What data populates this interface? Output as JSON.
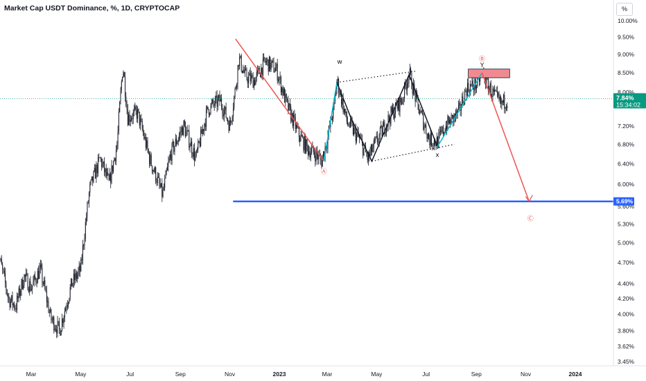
{
  "chart_title": "Market Cap USDT Dominance, %, 1D, CRYPTOCAP",
  "scale_unit": "%",
  "chart_data": {
    "type": "candlestick",
    "scale": "log",
    "title": "Market Cap USDT Dominance, %, 1D, CRYPTOCAP",
    "y_range": [
      3.4,
      10.4
    ],
    "y_ticks": [
      "10.00%",
      "9.50%",
      "9.00%",
      "8.50%",
      "8.00%",
      "7.20%",
      "6.80%",
      "6.40%",
      "6.00%",
      "5.60%",
      "5.30%",
      "5.00%",
      "4.70%",
      "4.40%",
      "4.20%",
      "4.00%",
      "3.80%",
      "3.62%",
      "3.45%"
    ],
    "y_tick_values": [
      10.0,
      9.5,
      9.0,
      8.5,
      8.0,
      7.2,
      6.8,
      6.4,
      6.0,
      5.6,
      5.3,
      5.0,
      4.7,
      4.4,
      4.2,
      4.0,
      3.8,
      3.62,
      3.45
    ],
    "x_ticks": [
      {
        "label": "Mar",
        "date": "2022-03-01",
        "bold": false
      },
      {
        "label": "May",
        "date": "2022-05-01",
        "bold": false
      },
      {
        "label": "Jul",
        "date": "2022-07-01",
        "bold": false
      },
      {
        "label": "Sep",
        "date": "2022-09-01",
        "bold": false
      },
      {
        "label": "Nov",
        "date": "2022-11-01",
        "bold": false
      },
      {
        "label": "2023",
        "date": "2023-01-01",
        "bold": true
      },
      {
        "label": "Mar",
        "date": "2023-03-01",
        "bold": false
      },
      {
        "label": "May",
        "date": "2023-05-01",
        "bold": false
      },
      {
        "label": "Jul",
        "date": "2023-07-01",
        "bold": false
      },
      {
        "label": "Sep",
        "date": "2023-09-01",
        "bold": false
      },
      {
        "label": "Nov",
        "date": "2023-11-01",
        "bold": false
      },
      {
        "label": "2024",
        "date": "2024-01-01",
        "bold": true
      }
    ],
    "price_path": [
      [
        "2022-01-18",
        4.9
      ],
      [
        "2022-02-01",
        4.2
      ],
      [
        "2022-02-10",
        4.1
      ],
      [
        "2022-02-20",
        4.5
      ],
      [
        "2022-03-01",
        4.35
      ],
      [
        "2022-03-12",
        4.6
      ],
      [
        "2022-03-25",
        3.95
      ],
      [
        "2022-04-05",
        3.8
      ],
      [
        "2022-04-20",
        4.4
      ],
      [
        "2022-05-01",
        4.6
      ],
      [
        "2022-05-12",
        5.9
      ],
      [
        "2022-05-25",
        6.5
      ],
      [
        "2022-06-05",
        6.0
      ],
      [
        "2022-06-15",
        6.8
      ],
      [
        "2022-06-22",
        8.7
      ],
      [
        "2022-06-28",
        7.4
      ],
      [
        "2022-07-10",
        7.5
      ],
      [
        "2022-07-25",
        6.5
      ],
      [
        "2022-08-10",
        5.8
      ],
      [
        "2022-08-20",
        6.6
      ],
      [
        "2022-09-05",
        7.2
      ],
      [
        "2022-09-20",
        6.5
      ],
      [
        "2022-10-05",
        7.6
      ],
      [
        "2022-10-20",
        7.8
      ],
      [
        "2022-11-01",
        7.2
      ],
      [
        "2022-11-08",
        8.1
      ],
      [
        "2022-11-12",
        8.9
      ],
      [
        "2022-11-20",
        8.4
      ],
      [
        "2022-12-01",
        8.3
      ],
      [
        "2022-12-15",
        8.8
      ],
      [
        "2022-12-28",
        8.6
      ],
      [
        "2023-01-10",
        7.7
      ],
      [
        "2023-01-25",
        7.0
      ],
      [
        "2023-02-05",
        6.7
      ],
      [
        "2023-02-15",
        6.6
      ],
      [
        "2023-02-22",
        6.45
      ],
      [
        "2023-03-01",
        6.9
      ],
      [
        "2023-03-10",
        7.7
      ],
      [
        "2023-03-13",
        8.3
      ],
      [
        "2023-03-25",
        7.3
      ],
      [
        "2023-04-10",
        6.9
      ],
      [
        "2023-04-20",
        6.5
      ],
      [
        "2023-05-05",
        7.0
      ],
      [
        "2023-05-20",
        7.5
      ],
      [
        "2023-06-01",
        7.8
      ],
      [
        "2023-06-10",
        8.5
      ],
      [
        "2023-06-20",
        7.7
      ],
      [
        "2023-07-05",
        6.9
      ],
      [
        "2023-07-15",
        6.85
      ],
      [
        "2023-07-25",
        7.2
      ],
      [
        "2023-08-10",
        7.5
      ],
      [
        "2023-08-20",
        8.1
      ],
      [
        "2023-09-01",
        8.2
      ],
      [
        "2023-09-08",
        8.5
      ],
      [
        "2023-09-20",
        8.0
      ],
      [
        "2023-10-01",
        7.7
      ],
      [
        "2023-10-10",
        7.84
      ]
    ],
    "drawings": {
      "wave_labels": [
        "A",
        "B",
        "C",
        "W",
        "X",
        "Y"
      ],
      "wave_label_text": [
        "Ⓐ",
        "Ⓑ",
        "Ⓒ",
        "w",
        "x",
        "Y"
      ],
      "resistance_zone": {
        "from": "2023-08-22",
        "to": "2023-10-12",
        "low": 8.37,
        "high": 8.6,
        "color": "#ef5350"
      },
      "support_line": {
        "from": "2022-11-05",
        "to": "2024-03-31",
        "value": 5.69,
        "color": "#2962ff",
        "label": "5.69%"
      },
      "projection": [
        [
          "2023-09-08",
          8.5
        ],
        [
          "2023-11-05",
          5.69
        ]
      ],
      "waves": [
        {
          "color": "#ef5350",
          "points": [
            [
              "2022-11-08",
              9.45
            ],
            [
              "2023-02-25",
              6.45
            ]
          ]
        },
        {
          "color": "#00bcd4",
          "points": [
            [
              "2023-02-25",
              6.45
            ],
            [
              "2023-03-13",
              8.25
            ]
          ]
        },
        {
          "color": "#131722",
          "points": [
            [
              "2023-03-13",
              8.25
            ],
            [
              "2023-03-30",
              7.4
            ],
            [
              "2023-04-15",
              6.8
            ],
            [
              "2023-04-25",
              6.45
            ],
            [
              "2023-06-10",
              8.45
            ],
            [
              "2023-07-15",
              6.75
            ]
          ]
        },
        {
          "color": "#00bcd4",
          "points": [
            [
              "2023-07-15",
              6.75
            ],
            [
              "2023-09-08",
              8.5
            ]
          ]
        }
      ],
      "channel_upper": [
        [
          "2023-03-13",
          8.25
        ],
        [
          "2023-06-20",
          8.55
        ]
      ],
      "channel_lower": [
        [
          "2023-04-25",
          6.45
        ],
        [
          "2023-08-05",
          6.8
        ]
      ]
    },
    "last_price": {
      "value": 7.84,
      "label": "7.84%",
      "countdown": "15:34:02",
      "color": "#089981"
    }
  }
}
